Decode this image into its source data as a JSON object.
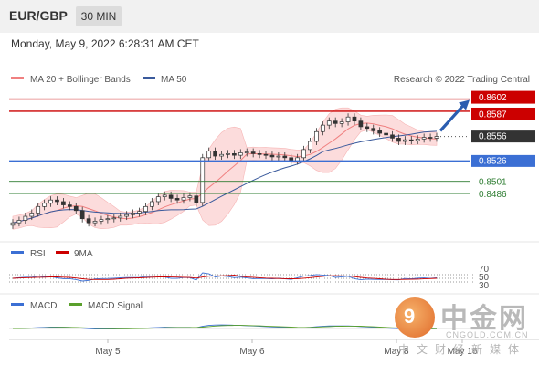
{
  "header": {
    "pair": "EUR/GBP",
    "timeframe": "30 MIN"
  },
  "timestamp": "Monday, May 9, 2022 6:28:31 AM CET",
  "legend": {
    "ma20": "MA 20 + Bollinger Bands",
    "ma50": "MA 50",
    "credit": "Research © 2022 Trading Central"
  },
  "colors": {
    "resistance": "#cc0000",
    "support": "#3b6fd4",
    "target": "#2e7d32",
    "ma20": "#f08080",
    "ma50": "#3a5a9c",
    "band": "#fcdcdc"
  },
  "watermark": {
    "logo_text": "中金网",
    "url": "CNGOLD.COM.CN",
    "sub": "中文财经新媒体"
  },
  "chart_data": {
    "type": "candlestick",
    "ylim": [
      0.843,
      0.8615
    ],
    "x_labels": [
      "May 5",
      "May 6",
      "May 8",
      "May 16"
    ],
    "levels": [
      {
        "value": 0.8602,
        "label": "0.8602",
        "kind": "resistance"
      },
      {
        "value": 0.8587,
        "label": "0.8587",
        "kind": "resistance"
      },
      {
        "value": 0.8556,
        "label": "0.8556",
        "kind": "current"
      },
      {
        "value": 0.8526,
        "label": "0.8526",
        "kind": "pivot"
      },
      {
        "value": 0.8501,
        "label": "0.8501",
        "kind": "support"
      },
      {
        "value": 0.8486,
        "label": "0.8486",
        "kind": "support"
      }
    ],
    "closes": [
      0.845,
      0.8453,
      0.8458,
      0.8462,
      0.847,
      0.8474,
      0.8478,
      0.8476,
      0.8472,
      0.847,
      0.8465,
      0.8455,
      0.845,
      0.8452,
      0.8454,
      0.8455,
      0.8456,
      0.8458,
      0.846,
      0.8462,
      0.8464,
      0.847,
      0.8476,
      0.8482,
      0.8484,
      0.848,
      0.8478,
      0.8481,
      0.8483,
      0.8475,
      0.853,
      0.8538,
      0.8532,
      0.8534,
      0.8535,
      0.8533,
      0.8536,
      0.8537,
      0.8535,
      0.8534,
      0.8533,
      0.8531,
      0.8532,
      0.853,
      0.8526,
      0.853,
      0.854,
      0.855,
      0.8562,
      0.857,
      0.8575,
      0.8572,
      0.8574,
      0.858,
      0.8575,
      0.8568,
      0.8566,
      0.8563,
      0.856,
      0.8558,
      0.8554,
      0.855,
      0.8552,
      0.8551,
      0.8553,
      0.8555,
      0.8554,
      0.8556
    ],
    "rsi": {
      "label": "RSI",
      "ma_label": "9MA",
      "ticks": [
        "70",
        "50",
        "30"
      ]
    },
    "macd": {
      "label": "MACD",
      "signal_label": "MACD Signal"
    }
  }
}
